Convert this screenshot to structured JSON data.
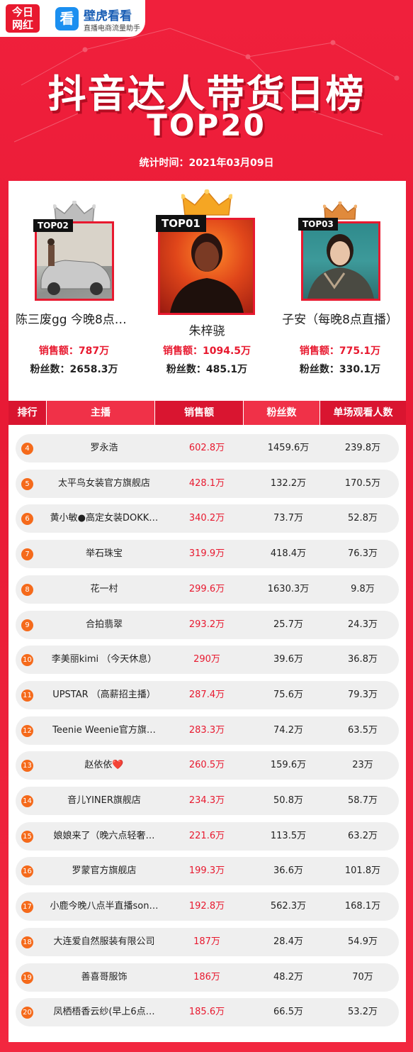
{
  "brand": {
    "logo1_line1": "今日",
    "logo1_line2": "网红",
    "logo2_icon": "看",
    "logo2_name": "壁虎看看",
    "logo2_sub": "直播电商流量助手"
  },
  "header": {
    "title": "抖音达人带货日榜",
    "subtitle": "TOP20",
    "stat_time": "统计时间：2021年03月09日"
  },
  "top3": [
    {
      "badge": "TOP02",
      "name": "陈三废gg 今晚8点…",
      "sales": "销售额：787万",
      "fans": "粉丝数：2658.3万"
    },
    {
      "badge": "TOP01",
      "name": "朱梓骁",
      "sales": "销售额：1094.5万",
      "fans": "粉丝数：485.1万"
    },
    {
      "badge": "TOP03",
      "name": "子安（每晚8点直播）",
      "sales": "销售额：775.1万",
      "fans": "粉丝数：330.1万"
    }
  ],
  "table": {
    "headers": [
      "排行",
      "主播",
      "销售额",
      "粉丝数",
      "单场观看人数"
    ],
    "rows": [
      {
        "rank": "4",
        "name": "罗永浩",
        "sales": "602.8万",
        "fans": "1459.6万",
        "views": "239.8万"
      },
      {
        "rank": "5",
        "name": "太平鸟女装官方旗舰店",
        "sales": "428.1万",
        "fans": "132.2万",
        "views": "170.5万"
      },
      {
        "rank": "6",
        "name": "黄小敏●高定女装DOKK…",
        "sales": "340.2万",
        "fans": "73.7万",
        "views": "52.8万"
      },
      {
        "rank": "7",
        "name": "举石珠宝",
        "sales": "319.9万",
        "fans": "418.4万",
        "views": "76.3万"
      },
      {
        "rank": "8",
        "name": "花一村",
        "sales": "299.6万",
        "fans": "1630.3万",
        "views": "9.8万"
      },
      {
        "rank": "9",
        "name": "合拍翡翠",
        "sales": "293.2万",
        "fans": "25.7万",
        "views": "24.3万"
      },
      {
        "rank": "10",
        "name": "李美丽kimi （今天休息）",
        "sales": "290万",
        "fans": "39.6万",
        "views": "36.8万"
      },
      {
        "rank": "11",
        "name": "UPSTAR （高薪招主播）",
        "sales": "287.4万",
        "fans": "75.6万",
        "views": "79.3万"
      },
      {
        "rank": "12",
        "name": "Teenie Weenie官方旗…",
        "sales": "283.3万",
        "fans": "74.2万",
        "views": "63.5万"
      },
      {
        "rank": "13",
        "name": "赵依依❤️",
        "sales": "260.5万",
        "fans": "159.6万",
        "views": "23万"
      },
      {
        "rank": "14",
        "name": "音儿YINER旗舰店",
        "sales": "234.3万",
        "fans": "50.8万",
        "views": "58.7万"
      },
      {
        "rank": "15",
        "name": "娘娘来了（晚六点轻奢…",
        "sales": "221.6万",
        "fans": "113.5万",
        "views": "63.2万"
      },
      {
        "rank": "16",
        "name": "罗蒙官方旗舰店",
        "sales": "199.3万",
        "fans": "36.6万",
        "views": "101.8万"
      },
      {
        "rank": "17",
        "name": "小鹿今晚八点半直播son…",
        "sales": "192.8万",
        "fans": "562.3万",
        "views": "168.1万"
      },
      {
        "rank": "18",
        "name": "大连爱自然服装有限公司",
        "sales": "187万",
        "fans": "28.4万",
        "views": "54.9万"
      },
      {
        "rank": "19",
        "name": "善喜哥服饰",
        "sales": "186万",
        "fans": "48.2万",
        "views": "70万"
      },
      {
        "rank": "20",
        "name": "凤栖梧香云纱(早上6点…",
        "sales": "185.6万",
        "fans": "66.5万",
        "views": "53.2万"
      }
    ]
  },
  "colors": {
    "accent": "#e8192f",
    "rank_badge": "#f56a1b",
    "crown_gold": "#f5a623",
    "crown_silver": "#bdbdbd",
    "crown_bronze": "#e08a3c"
  },
  "icons": [
    "crown-gold-icon",
    "crown-silver-icon",
    "crown-bronze-icon"
  ]
}
